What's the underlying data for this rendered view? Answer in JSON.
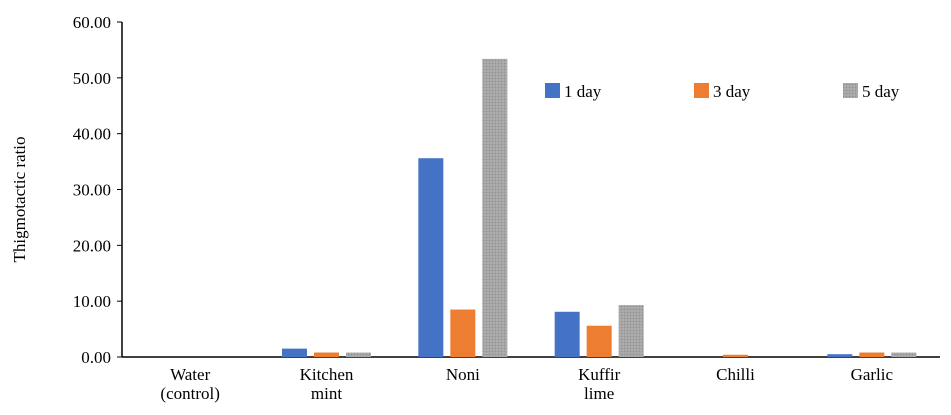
{
  "chart_data": {
    "type": "bar",
    "title": "",
    "xlabel": "",
    "ylabel": "Thigmotactic ratio",
    "ylim": [
      0,
      60
    ],
    "yticks": [
      "0.00",
      "10.00",
      "20.00",
      "30.00",
      "40.00",
      "50.00",
      "60.00"
    ],
    "categories": [
      [
        "Water",
        "(control)"
      ],
      [
        "Kitchen",
        "mint"
      ],
      [
        "Noni"
      ],
      [
        "Kuffir",
        "lime"
      ],
      [
        "Chilli"
      ],
      [
        "Garlic"
      ]
    ],
    "series": [
      {
        "name": "1 day",
        "color": "#4472c4",
        "values": [
          0.0,
          1.5,
          35.6,
          8.1,
          0.0,
          0.5
        ]
      },
      {
        "name": "3 day",
        "color": "#ed7d31",
        "values": [
          0.0,
          0.8,
          8.5,
          5.6,
          0.4,
          0.8
        ]
      },
      {
        "name": "5 day",
        "color": "#a5a5a5",
        "values": [
          0.0,
          0.8,
          53.4,
          9.3,
          0.0,
          0.8
        ]
      }
    ],
    "legend": "top-right",
    "grid": false
  }
}
